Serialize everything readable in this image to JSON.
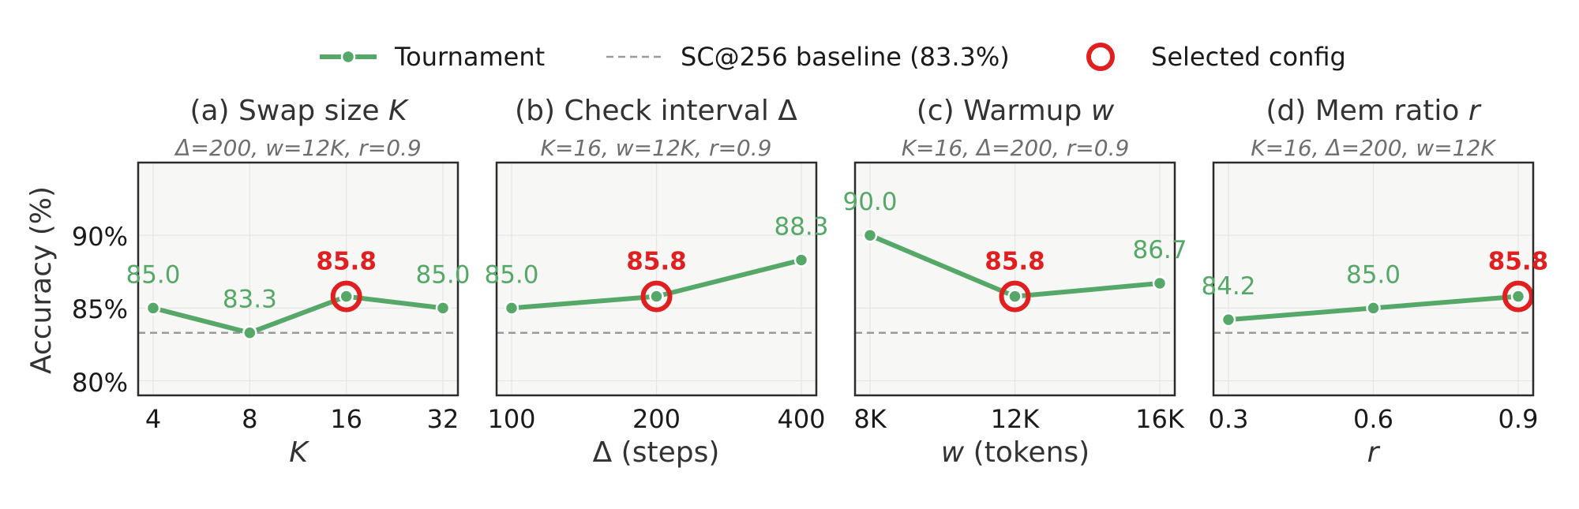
{
  "legend": {
    "tournament_label": "Tournament",
    "baseline_label": "SC@256 baseline (83.3%)",
    "selected_label": "Selected config"
  },
  "colors": {
    "series": "#55a868",
    "selected": "#e02020",
    "baseline": "#9a9a9a",
    "panel_bg": "#f7f7f5",
    "grid": "#e6e6e6"
  },
  "ylabel": "Accuracy (%)",
  "ytick_labels": [
    "80%",
    "85%",
    "90%"
  ],
  "chart_data": [
    {
      "type": "line",
      "title_plain": "(a) Swap size ",
      "title_var": "K",
      "subtitle": "Δ=200, w=12K, r=0.9",
      "xlabel_var": "K",
      "xlabel_rest": "",
      "categories": [
        "4",
        "8",
        "16",
        "32"
      ],
      "values": [
        85.0,
        83.3,
        85.8,
        85.0
      ],
      "value_labels": [
        "85.0",
        "83.3",
        "85.8",
        "85.0"
      ],
      "selected_index": 2,
      "baseline": 83.3,
      "ylim": [
        79,
        95
      ]
    },
    {
      "type": "line",
      "title_plain": "(b) Check interval Δ",
      "title_var": "",
      "subtitle": "K=16, w=12K, r=0.9",
      "xlabel_var": "",
      "xlabel_rest": "Δ (steps)",
      "categories": [
        "100",
        "200",
        "400"
      ],
      "values": [
        85.0,
        85.8,
        88.3
      ],
      "value_labels": [
        "85.0",
        "85.8",
        "88.3"
      ],
      "selected_index": 1,
      "baseline": 83.3,
      "ylim": [
        79,
        95
      ]
    },
    {
      "type": "line",
      "title_plain": "(c) Warmup ",
      "title_var": "w",
      "subtitle": "K=16, Δ=200, r=0.9",
      "xlabel_var": "w",
      "xlabel_rest": " (tokens)",
      "categories": [
        "8K",
        "12K",
        "16K"
      ],
      "values": [
        90.0,
        85.8,
        86.7
      ],
      "value_labels": [
        "90.0",
        "85.8",
        "86.7"
      ],
      "selected_index": 1,
      "baseline": 83.3,
      "ylim": [
        79,
        95
      ]
    },
    {
      "type": "line",
      "title_plain": "(d) Mem ratio ",
      "title_var": "r",
      "subtitle": "K=16, Δ=200, w=12K",
      "xlabel_var": "r",
      "xlabel_rest": "",
      "categories": [
        "0.3",
        "0.6",
        "0.9"
      ],
      "values": [
        84.2,
        85.0,
        85.8
      ],
      "value_labels": [
        "84.2",
        "85.0",
        "85.8"
      ],
      "selected_index": 2,
      "baseline": 83.3,
      "ylim": [
        79,
        95
      ]
    }
  ]
}
